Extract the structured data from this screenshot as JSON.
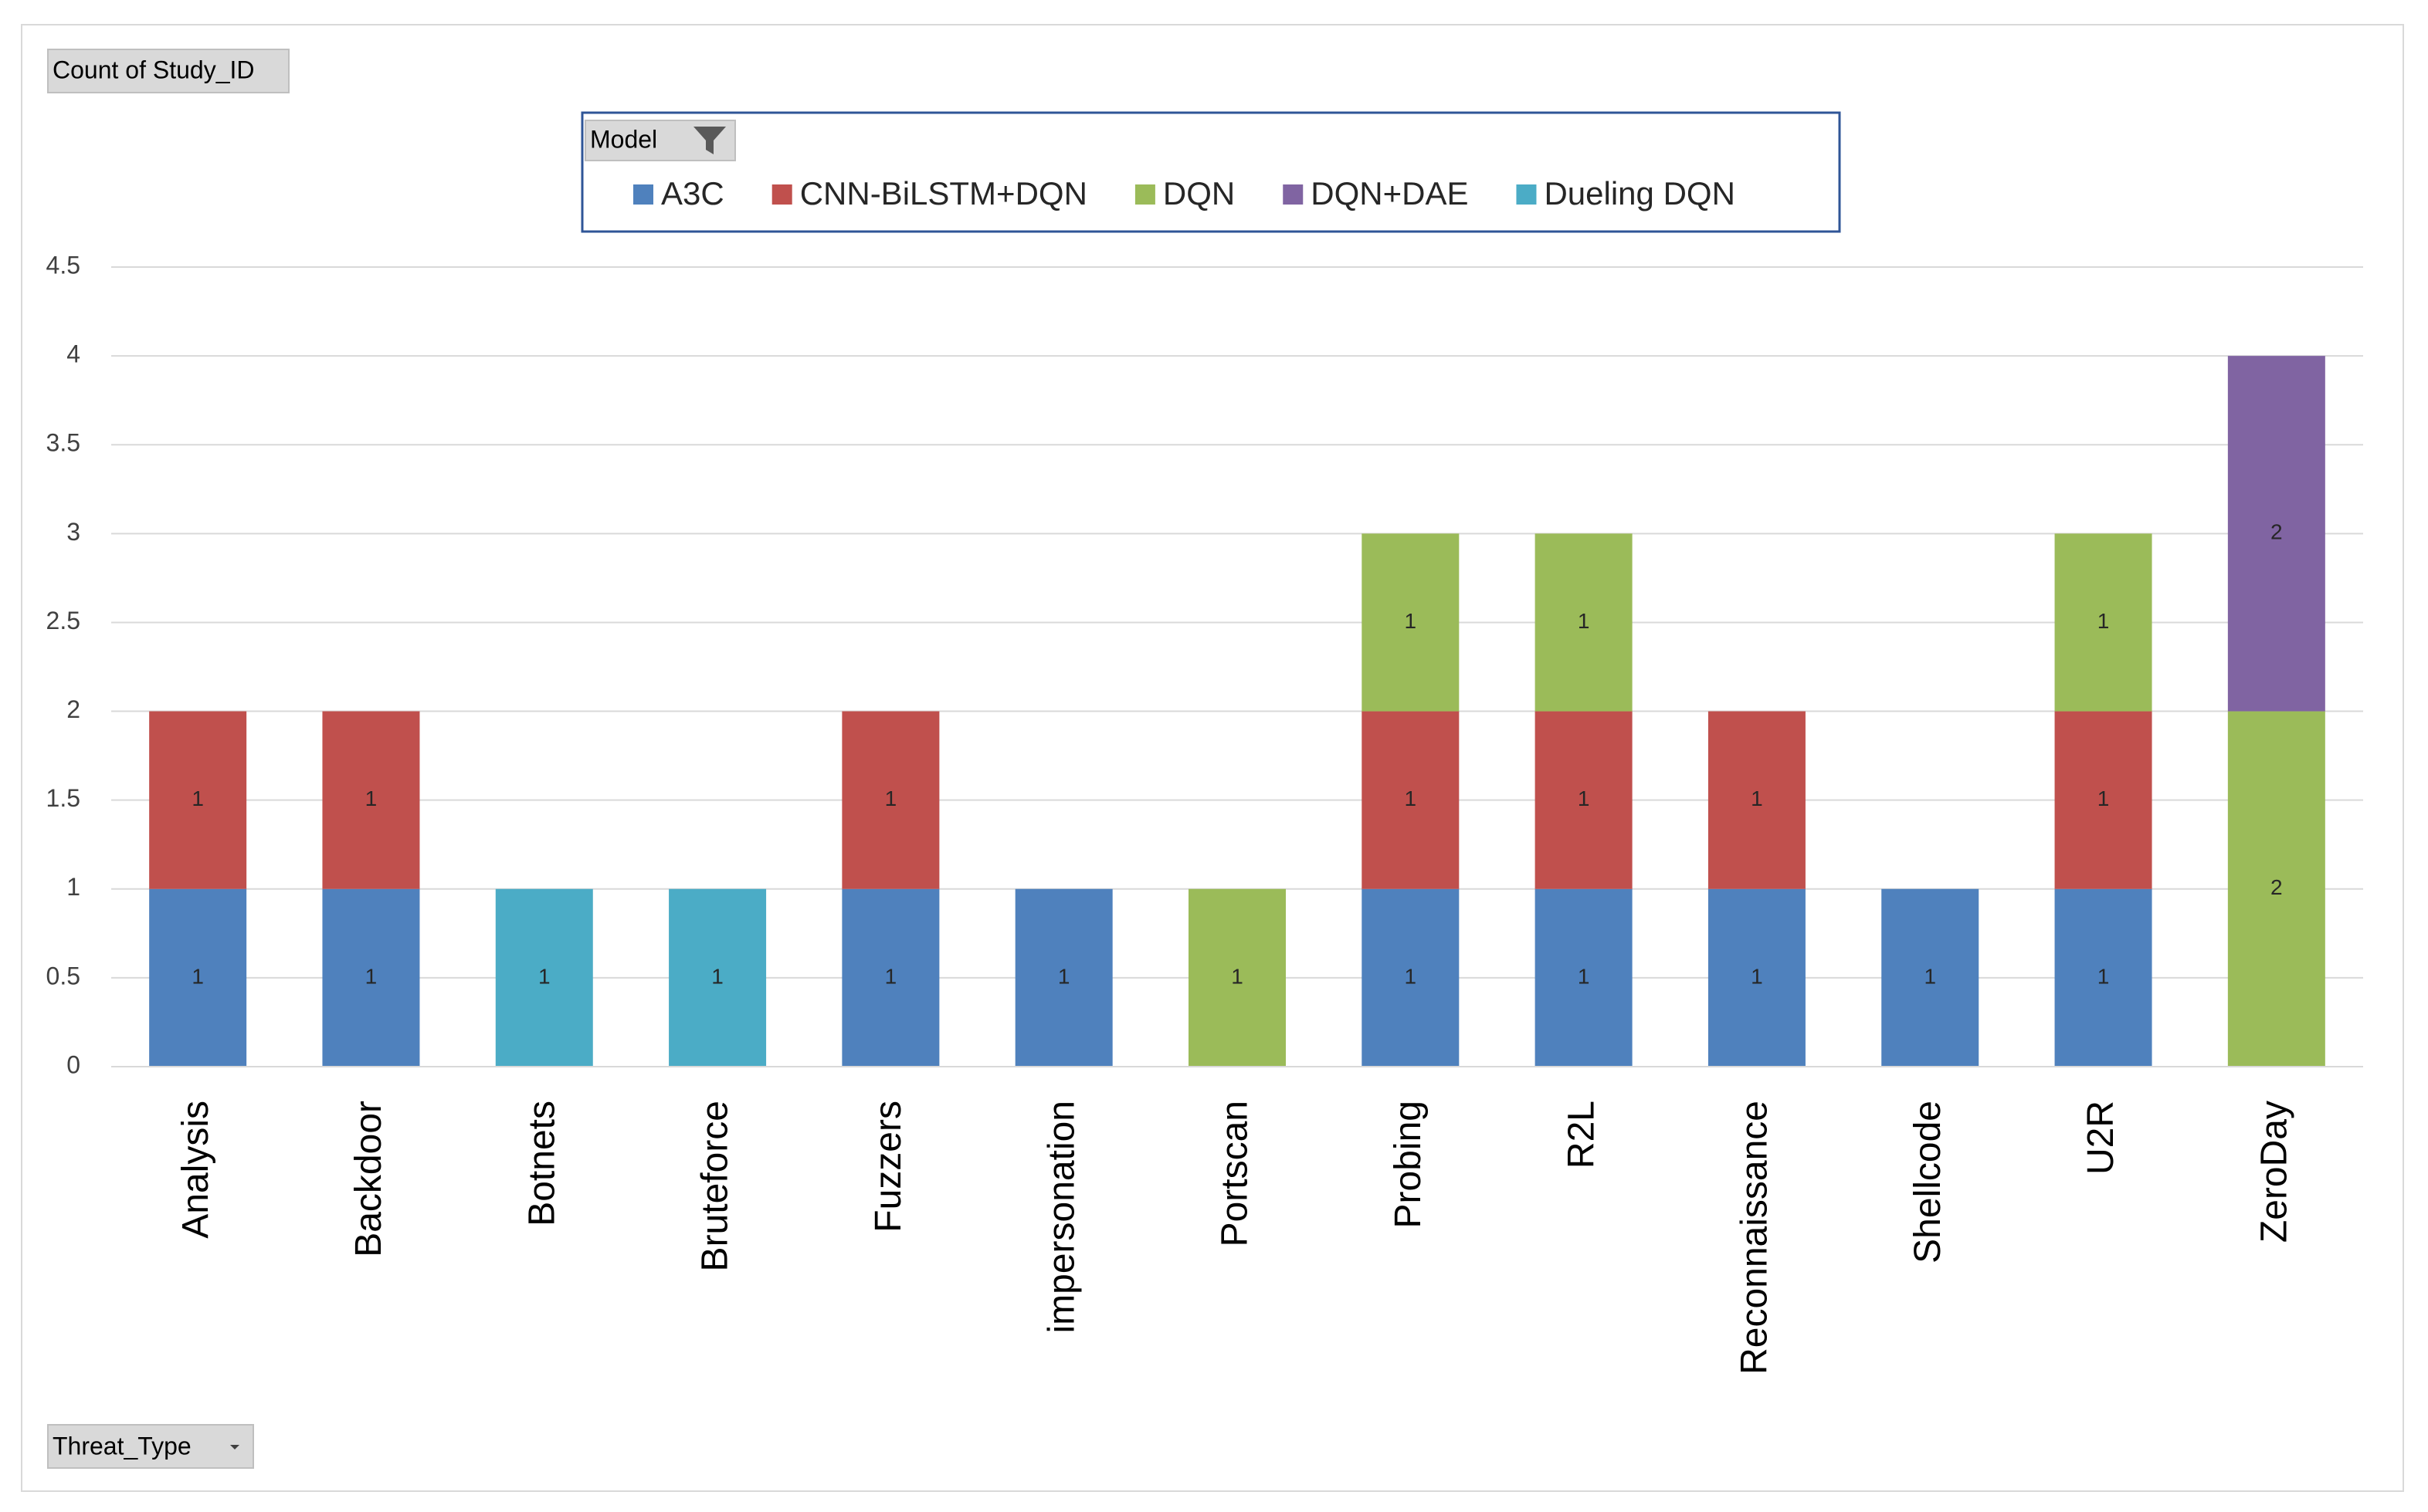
{
  "chart_data": {
    "type": "stacked-bar",
    "pivot_value_field": "Count of Study_ID",
    "pivot_legend_field": "Model",
    "pivot_axis_field": "Threat_Type",
    "categories": [
      "Analysis",
      "Backdoor",
      "Botnets",
      "Bruteforce",
      "Fuzzers",
      "impersonation",
      "Portscan",
      "Probing",
      "R2L",
      "Reconnaissance",
      "Shellcode",
      "U2R",
      "ZeroDay"
    ],
    "series": [
      {
        "name": "A3C",
        "color": "#4f81bd",
        "values": [
          1,
          1,
          null,
          null,
          1,
          1,
          null,
          1,
          1,
          1,
          1,
          1,
          null
        ]
      },
      {
        "name": "CNN-BiLSTM+DQN",
        "color": "#c0504d",
        "values": [
          1,
          1,
          null,
          null,
          1,
          null,
          null,
          1,
          1,
          1,
          null,
          1,
          null
        ]
      },
      {
        "name": "DQN",
        "color": "#9bbb59",
        "values": [
          null,
          null,
          null,
          null,
          null,
          null,
          1,
          1,
          1,
          null,
          null,
          1,
          2
        ]
      },
      {
        "name": "DQN+DAE",
        "color": "#8064a2",
        "values": [
          null,
          null,
          null,
          null,
          null,
          null,
          null,
          null,
          null,
          null,
          null,
          null,
          2
        ]
      },
      {
        "name": "Dueling DQN",
        "color": "#4bacc6",
        "values": [
          null,
          null,
          1,
          1,
          null,
          null,
          null,
          null,
          null,
          null,
          null,
          null,
          null
        ]
      }
    ],
    "ylim": [
      0,
      4.5
    ],
    "yticks": [
      0,
      0.5,
      1,
      1.5,
      2,
      2.5,
      3,
      3.5,
      4,
      4.5
    ],
    "grid": true,
    "legend": "top"
  }
}
